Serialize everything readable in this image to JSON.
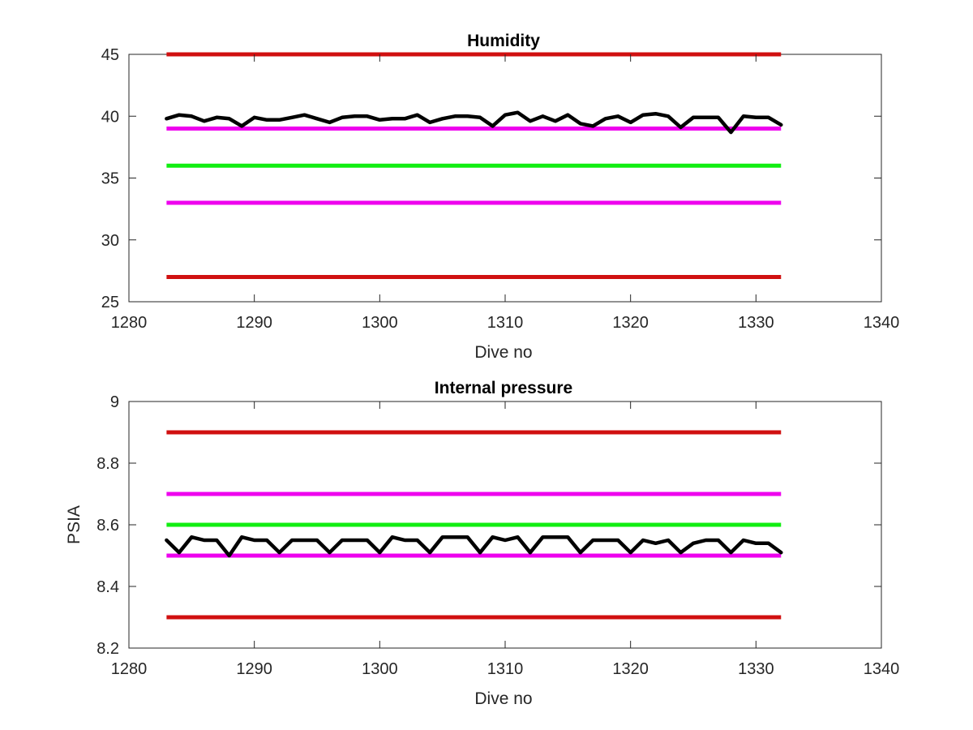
{
  "chart_data": [
    {
      "type": "line",
      "title": "Humidity",
      "xlabel": "Dive no",
      "ylabel": "",
      "xlim": [
        1280,
        1340
      ],
      "ylim": [
        25,
        45
      ],
      "xticks": [
        1280,
        1290,
        1300,
        1310,
        1320,
        1330,
        1340
      ],
      "yticks": [
        25,
        30,
        35,
        40,
        45
      ],
      "grid": false,
      "x": [
        1283,
        1284,
        1285,
        1286,
        1287,
        1288,
        1289,
        1290,
        1291,
        1292,
        1293,
        1294,
        1295,
        1296,
        1297,
        1298,
        1299,
        1300,
        1301,
        1302,
        1303,
        1304,
        1305,
        1306,
        1307,
        1308,
        1309,
        1310,
        1311,
        1312,
        1313,
        1314,
        1315,
        1316,
        1317,
        1318,
        1319,
        1320,
        1321,
        1322,
        1323,
        1324,
        1325,
        1326,
        1327,
        1328,
        1329,
        1330,
        1331,
        1332
      ],
      "series": [
        {
          "color": "#000000",
          "values": [
            39.8,
            40.1,
            40.0,
            39.6,
            39.9,
            39.8,
            39.2,
            39.9,
            39.7,
            39.7,
            39.9,
            40.1,
            39.8,
            39.5,
            39.9,
            40.0,
            40.0,
            39.7,
            39.8,
            39.8,
            40.1,
            39.5,
            39.8,
            40.0,
            40.0,
            39.9,
            39.2,
            40.1,
            40.3,
            39.6,
            40.0,
            39.6,
            40.1,
            39.4,
            39.2,
            39.8,
            40.0,
            39.5,
            40.1,
            40.2,
            40.0,
            39.1,
            39.9,
            39.9,
            39.9,
            38.7,
            40.0,
            39.9,
            39.9,
            39.3
          ]
        }
      ],
      "reference_lines": [
        {
          "value": 45,
          "color": "#d01010"
        },
        {
          "value": 39,
          "color": "#ee00ee"
        },
        {
          "value": 36,
          "color": "#11ee11"
        },
        {
          "value": 33,
          "color": "#ee00ee"
        },
        {
          "value": 27,
          "color": "#d01010"
        }
      ],
      "reference_x_range": [
        1283,
        1332
      ]
    },
    {
      "type": "line",
      "title": "Internal pressure",
      "xlabel": "Dive no",
      "ylabel": "PSIA",
      "xlim": [
        1280,
        1340
      ],
      "ylim": [
        8.2,
        9.0
      ],
      "xticks": [
        1280,
        1290,
        1300,
        1310,
        1320,
        1330,
        1340
      ],
      "yticks": [
        8.2,
        8.4,
        8.6,
        8.8,
        9.0
      ],
      "ytick_labels": [
        "8.2",
        "8.4",
        "8.6",
        "8.8",
        "9"
      ],
      "grid": false,
      "x": [
        1283,
        1284,
        1285,
        1286,
        1287,
        1288,
        1289,
        1290,
        1291,
        1292,
        1293,
        1294,
        1295,
        1296,
        1297,
        1298,
        1299,
        1300,
        1301,
        1302,
        1303,
        1304,
        1305,
        1306,
        1307,
        1308,
        1309,
        1310,
        1311,
        1312,
        1313,
        1314,
        1315,
        1316,
        1317,
        1318,
        1319,
        1320,
        1321,
        1322,
        1323,
        1324,
        1325,
        1326,
        1327,
        1328,
        1329,
        1330,
        1331,
        1332
      ],
      "series": [
        {
          "color": "#000000",
          "values": [
            8.55,
            8.51,
            8.56,
            8.55,
            8.55,
            8.5,
            8.56,
            8.55,
            8.55,
            8.51,
            8.55,
            8.55,
            8.55,
            8.51,
            8.55,
            8.55,
            8.55,
            8.51,
            8.56,
            8.55,
            8.55,
            8.51,
            8.56,
            8.56,
            8.56,
            8.51,
            8.56,
            8.55,
            8.56,
            8.51,
            8.56,
            8.56,
            8.56,
            8.51,
            8.55,
            8.55,
            8.55,
            8.51,
            8.55,
            8.54,
            8.55,
            8.51,
            8.54,
            8.55,
            8.55,
            8.51,
            8.55,
            8.54,
            8.54,
            8.51
          ]
        }
      ],
      "reference_lines": [
        {
          "value": 8.9,
          "color": "#d01010"
        },
        {
          "value": 8.7,
          "color": "#ee00ee"
        },
        {
          "value": 8.6,
          "color": "#11ee11"
        },
        {
          "value": 8.5,
          "color": "#ee00ee"
        },
        {
          "value": 8.3,
          "color": "#d01010"
        }
      ],
      "reference_x_range": [
        1283,
        1332
      ]
    }
  ]
}
